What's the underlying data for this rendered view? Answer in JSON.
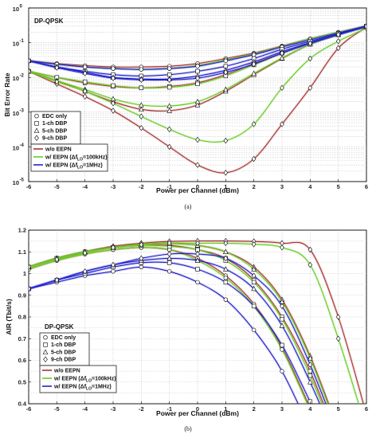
{
  "chart_data": [
    {
      "type": "line",
      "panel_caption": "(a)",
      "title": "DP-QPSK",
      "xlabel": "Power per Channel (dBm)",
      "ylabel": "Bit Error Rate",
      "xlim": [
        -6,
        6
      ],
      "ylim": [
        1e-05,
        1
      ],
      "yscale": "log",
      "x_ticks": [
        "-6",
        "-5",
        "-4",
        "-3",
        "-2",
        "-1",
        "0",
        "1",
        "2",
        "3",
        "4",
        "5",
        "6"
      ],
      "y_ticks": [
        {
          "base": "10",
          "exp": "-5",
          "v": 1e-05
        },
        {
          "base": "10",
          "exp": "-4",
          "v": 0.0001
        },
        {
          "base": "10",
          "exp": "-3",
          "v": 0.001
        },
        {
          "base": "10",
          "exp": "-2",
          "v": 0.01
        },
        {
          "base": "10",
          "exp": "-1",
          "v": 0.1
        },
        {
          "base": "10",
          "exp": "0",
          "v": 1
        }
      ],
      "grid": true,
      "legend_marker_entries": [
        {
          "label": "EDC only",
          "marker": "circle"
        },
        {
          "label": "1-ch DBP",
          "marker": "square"
        },
        {
          "label": "5-ch DBP",
          "marker": "triangle"
        },
        {
          "label": "9-ch DBP",
          "marker": "diamond"
        }
      ],
      "legend_line_entries": [
        {
          "text": "w/o EEPN",
          "color": "#a83232"
        },
        {
          "text": "w/ EEPN (Δf",
          "sub": "LO",
          "suffix": "=100kHz)",
          "color": "#66cc22"
        },
        {
          "text": "w/ EEPN (Δf",
          "sub": "LO",
          "suffix": "=1MHz)",
          "color": "#2222cc"
        }
      ],
      "x": [
        -6,
        -5,
        -4,
        -3,
        -2,
        -1,
        0,
        1,
        2,
        3,
        4,
        5,
        6
      ],
      "series": [
        {
          "color": "#a83232",
          "marker": "circle",
          "values": [
            0.03,
            0.025,
            0.022,
            0.02,
            0.02,
            0.021,
            0.025,
            0.035,
            0.05,
            0.08,
            0.13,
            0.2,
            0.3
          ]
        },
        {
          "color": "#a83232",
          "marker": "square",
          "values": [
            0.015,
            0.01,
            0.007,
            0.0055,
            0.005,
            0.0055,
            0.007,
            0.012,
            0.025,
            0.05,
            0.1,
            0.18,
            0.3
          ]
        },
        {
          "color": "#a83232",
          "marker": "triangle",
          "values": [
            0.015,
            0.008,
            0.004,
            0.002,
            0.0012,
            0.0011,
            0.0016,
            0.004,
            0.012,
            0.035,
            0.09,
            0.17,
            0.29
          ]
        },
        {
          "color": "#a83232",
          "marker": "diamond",
          "values": [
            0.015,
            0.0065,
            0.0028,
            0.0011,
            0.00035,
            0.0001,
            3e-05,
            1.8e-05,
            4.5e-05,
            0.00045,
            0.005,
            0.07,
            0.28
          ]
        },
        {
          "color": "#66cc22",
          "marker": "circle",
          "values": [
            0.03,
            0.024,
            0.02,
            0.018,
            0.017,
            0.018,
            0.022,
            0.032,
            0.048,
            0.078,
            0.13,
            0.2,
            0.3
          ]
        },
        {
          "color": "#66cc22",
          "marker": "square",
          "values": [
            0.015,
            0.01,
            0.0075,
            0.0058,
            0.005,
            0.0052,
            0.0065,
            0.011,
            0.023,
            0.05,
            0.1,
            0.18,
            0.3
          ]
        },
        {
          "color": "#66cc22",
          "marker": "triangle",
          "values": [
            0.015,
            0.008,
            0.0045,
            0.0024,
            0.0016,
            0.0015,
            0.002,
            0.0045,
            0.013,
            0.036,
            0.09,
            0.17,
            0.29
          ]
        },
        {
          "color": "#66cc22",
          "marker": "diamond",
          "values": [
            0.015,
            0.0075,
            0.004,
            0.0018,
            0.00075,
            0.00032,
            0.00016,
            0.00015,
            0.00045,
            0.005,
            0.035,
            0.11,
            0.26
          ]
        },
        {
          "color": "#2222cc",
          "marker": "circle",
          "values": [
            0.03,
            0.024,
            0.02,
            0.018,
            0.017,
            0.018,
            0.021,
            0.03,
            0.045,
            0.075,
            0.12,
            0.19,
            0.3
          ]
        },
        {
          "color": "#2222cc",
          "marker": "square",
          "values": [
            0.03,
            0.02,
            0.015,
            0.012,
            0.011,
            0.012,
            0.015,
            0.021,
            0.035,
            0.065,
            0.11,
            0.18,
            0.3
          ]
        },
        {
          "color": "#2222cc",
          "marker": "triangle",
          "values": [
            0.03,
            0.02,
            0.014,
            0.01,
            0.009,
            0.009,
            0.011,
            0.016,
            0.028,
            0.055,
            0.1,
            0.17,
            0.29
          ]
        },
        {
          "color": "#2222cc",
          "marker": "diamond",
          "values": [
            0.03,
            0.019,
            0.013,
            0.0095,
            0.0085,
            0.0085,
            0.0095,
            0.014,
            0.024,
            0.05,
            0.095,
            0.17,
            0.29
          ]
        }
      ]
    },
    {
      "type": "line",
      "panel_caption": "(b)",
      "title": "DP-QPSK",
      "xlabel": "Power per Channel (dBm)",
      "ylabel": "AIR (Tbit/s)",
      "xlim": [
        -6,
        6
      ],
      "ylim": [
        0.4,
        1.2
      ],
      "yscale": "linear",
      "x_ticks": [
        "-6",
        "-5",
        "-4",
        "-3",
        "-2",
        "-1",
        "0",
        "1",
        "2",
        "3",
        "4",
        "5",
        "6"
      ],
      "y_ticks": [
        "0.4",
        "0.5",
        "0.6",
        "0.7",
        "0.8",
        "0.9",
        "1",
        "1.1",
        "1.2"
      ],
      "grid": true,
      "legend_marker_entries": [
        {
          "label": "EDC only",
          "marker": "circle"
        },
        {
          "label": "1-ch DBP",
          "marker": "square"
        },
        {
          "label": "5-ch DBP",
          "marker": "triangle"
        },
        {
          "label": "9-ch DBP",
          "marker": "diamond"
        }
      ],
      "legend_line_entries": [
        {
          "text": "w/o EEPN",
          "color": "#a83232"
        },
        {
          "text": "w/ EEPN (Δf",
          "sub": "LO",
          "suffix": "=100kHz)",
          "color": "#66cc22"
        },
        {
          "text": "w/ EEPN (Δf",
          "sub": "LO",
          "suffix": "=1MHz)",
          "color": "#2222cc"
        }
      ],
      "x": [
        -6,
        -5,
        -4,
        -3,
        -2,
        -1,
        0,
        1,
        2,
        3,
        4,
        5,
        6
      ],
      "series": [
        {
          "color": "#a83232",
          "marker": "circle",
          "values": [
            1.02,
            1.06,
            1.09,
            1.11,
            1.12,
            1.11,
            1.07,
            0.99,
            0.86,
            0.66,
            0.38,
            null,
            null
          ]
        },
        {
          "color": "#a83232",
          "marker": "square",
          "values": [
            1.03,
            1.07,
            1.1,
            1.12,
            1.13,
            1.13,
            1.11,
            1.07,
            0.97,
            0.8,
            0.55,
            0.22,
            null
          ]
        },
        {
          "color": "#a83232",
          "marker": "triangle",
          "values": [
            1.03,
            1.07,
            1.1,
            1.125,
            1.135,
            1.14,
            1.13,
            1.1,
            1.03,
            0.88,
            0.62,
            0.28,
            null
          ]
        },
        {
          "color": "#a83232",
          "marker": "diamond",
          "values": [
            1.03,
            1.07,
            1.1,
            1.125,
            1.14,
            1.148,
            1.15,
            1.15,
            1.148,
            1.14,
            1.11,
            0.8,
            0.35
          ]
        },
        {
          "color": "#66cc22",
          "marker": "circle",
          "values": [
            1.02,
            1.06,
            1.09,
            1.11,
            1.12,
            1.11,
            1.06,
            0.98,
            0.85,
            0.65,
            0.37,
            null,
            null
          ]
        },
        {
          "color": "#66cc22",
          "marker": "square",
          "values": [
            1.03,
            1.07,
            1.1,
            1.12,
            1.13,
            1.125,
            1.11,
            1.06,
            0.96,
            0.79,
            0.53,
            0.21,
            null
          ]
        },
        {
          "color": "#66cc22",
          "marker": "triangle",
          "values": [
            1.03,
            1.07,
            1.1,
            1.12,
            1.135,
            1.138,
            1.13,
            1.1,
            1.02,
            0.87,
            0.61,
            0.27,
            null
          ]
        },
        {
          "color": "#66cc22",
          "marker": "diamond",
          "values": [
            1.03,
            1.065,
            1.095,
            1.12,
            1.133,
            1.14,
            1.14,
            1.14,
            1.135,
            1.12,
            1.04,
            0.7,
            0.28
          ]
        },
        {
          "color": "#2222cc",
          "marker": "circle",
          "values": [
            0.93,
            0.96,
            0.99,
            1.01,
            1.03,
            1.01,
            0.96,
            0.88,
            0.74,
            0.55,
            0.28,
            null,
            null
          ]
        },
        {
          "color": "#2222cc",
          "marker": "square",
          "values": [
            0.93,
            0.97,
            1.0,
            1.03,
            1.05,
            1.05,
            1.02,
            0.96,
            0.85,
            0.67,
            0.41,
            0.15,
            null
          ]
        },
        {
          "color": "#2222cc",
          "marker": "triangle",
          "values": [
            0.93,
            0.97,
            1.01,
            1.04,
            1.06,
            1.07,
            1.06,
            1.02,
            0.93,
            0.76,
            0.5,
            0.2,
            null
          ]
        },
        {
          "color": "#2222cc",
          "marker": "diamond",
          "values": [
            0.93,
            0.97,
            1.01,
            1.04,
            1.07,
            1.09,
            1.09,
            1.07,
            0.99,
            0.85,
            0.58,
            0.25,
            null
          ]
        }
      ]
    }
  ]
}
